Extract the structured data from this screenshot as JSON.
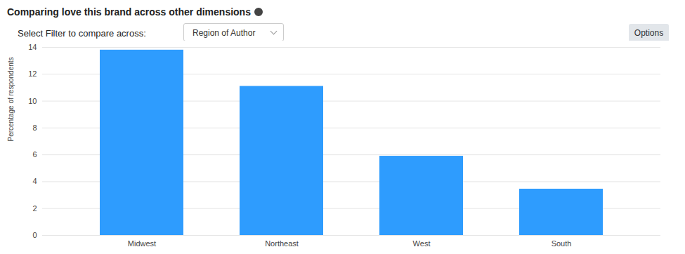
{
  "chart_data": {
    "type": "bar",
    "title": "Comparing love this brand across other dimensions",
    "filter_label": "Select Filter to compare across:",
    "filter_value": "Region of Author",
    "button": "Options",
    "y_label": "Percentage of respondents",
    "categories": [
      "Midwest",
      "Northeast",
      "West",
      "South"
    ],
    "values": [
      13.8,
      11.1,
      5.9,
      3.45
    ],
    "color": "#2e9cfe",
    "ylim": [
      0,
      14
    ],
    "yticks": [
      0,
      2,
      4,
      6,
      8,
      10,
      12,
      14
    ],
    "grid": true
  }
}
